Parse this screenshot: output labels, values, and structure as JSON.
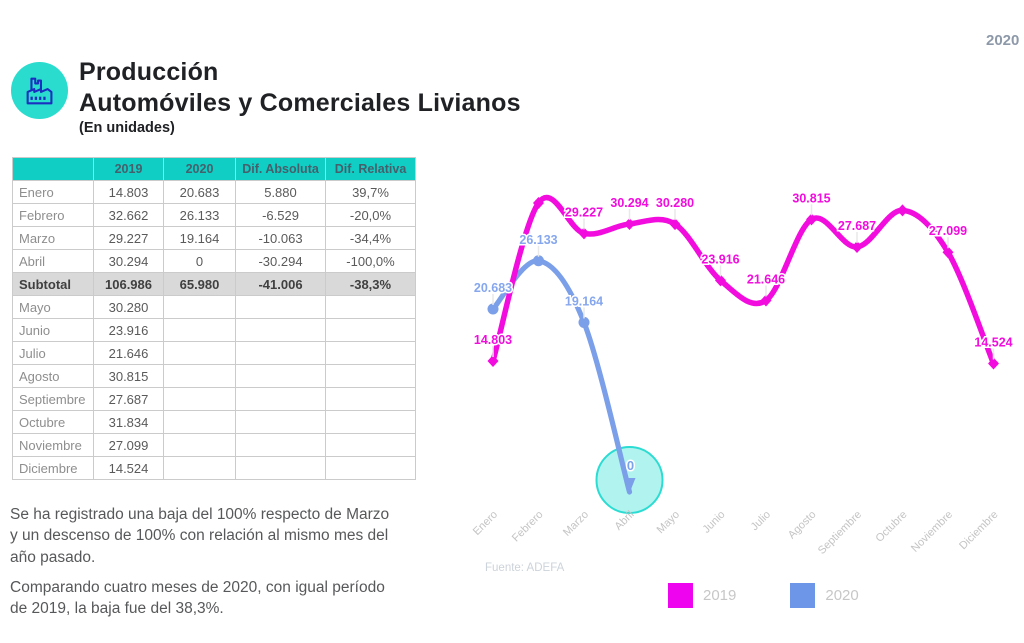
{
  "page": {
    "year_badge": "2020"
  },
  "header": {
    "title_line1": "Producción",
    "title_line2": "Automóviles y Comerciales Livianos",
    "subtitle": "(En unidades)",
    "icon": "factory-icon",
    "icon_bg_color": "#29DCCD",
    "icon_stroke_color": "#1B2EC0"
  },
  "table": {
    "columns": [
      "",
      "2019",
      "2020",
      "Dif. Absoluta",
      "Dif. Relativa"
    ],
    "rows": [
      {
        "label": "Enero",
        "values": [
          "14.803",
          "20.683",
          "5.880",
          "39,7%"
        ],
        "subtotal": false
      },
      {
        "label": "Febrero",
        "values": [
          "32.662",
          "26.133",
          "-6.529",
          "-20,0%"
        ],
        "subtotal": false
      },
      {
        "label": "Marzo",
        "values": [
          "29.227",
          "19.164",
          "-10.063",
          "-34,4%"
        ],
        "subtotal": false
      },
      {
        "label": "Abril",
        "values": [
          "30.294",
          "0",
          "-30.294",
          "-100,0%"
        ],
        "subtotal": false
      },
      {
        "label": "Subtotal",
        "values": [
          "106.986",
          "65.980",
          "-41.006",
          "-38,3%"
        ],
        "subtotal": true
      },
      {
        "label": "Mayo",
        "values": [
          "30.280",
          "",
          "",
          ""
        ],
        "subtotal": false
      },
      {
        "label": "Junio",
        "values": [
          "23.916",
          "",
          "",
          ""
        ],
        "subtotal": false
      },
      {
        "label": "Julio",
        "values": [
          "21.646",
          "",
          "",
          ""
        ],
        "subtotal": false
      },
      {
        "label": "Agosto",
        "values": [
          "30.815",
          "",
          "",
          ""
        ],
        "subtotal": false
      },
      {
        "label": "Septiembre",
        "values": [
          "27.687",
          "",
          "",
          ""
        ],
        "subtotal": false
      },
      {
        "label": "Octubre",
        "values": [
          "31.834",
          "",
          "",
          ""
        ],
        "subtotal": false
      },
      {
        "label": "Noviembre",
        "values": [
          "27.099",
          "",
          "",
          ""
        ],
        "subtotal": false
      },
      {
        "label": "Diciembre",
        "values": [
          "14.524",
          "",
          "",
          ""
        ],
        "subtotal": false
      }
    ]
  },
  "notes": {
    "p1": "Se ha registrado una baja del 100% respecto de Marzo y un descenso de 100% con relación al mismo mes del año pasado.",
    "p2": "Comparando cuatro meses de 2020, con igual período de 2019, la baja fue del 38,3%."
  },
  "chart": {
    "source": "Fuente: ADEFA",
    "legend": [
      {
        "label": "2019",
        "color": "#EF04EF"
      },
      {
        "label": "2020",
        "color": "#6D96E8"
      }
    ]
  },
  "chart_data": {
    "type": "line",
    "categories": [
      "Enero",
      "Febrero",
      "Marzo",
      "Abril",
      "Mayo",
      "Junio",
      "Julio",
      "Agosto",
      "Septiembre",
      "Octubre",
      "Noviembre",
      "Diciembre"
    ],
    "series": [
      {
        "name": "2019",
        "color": "#F20CDE",
        "marker": "diamond",
        "values": [
          14803,
          32662,
          29227,
          30294,
          30280,
          23916,
          21646,
          30815,
          27687,
          31834,
          27099,
          14524
        ],
        "labels": [
          "14.803",
          null,
          "29.227",
          "30.294",
          "30.280",
          "23.916",
          "21.646",
          "30.815",
          "27.687",
          null,
          "27.099",
          "14.524"
        ]
      },
      {
        "name": "2020",
        "color": "#7B9FE8",
        "marker": "circle",
        "values": [
          20683,
          26133,
          19164,
          0
        ],
        "labels": [
          "20.683",
          "26.133",
          "19.164",
          null
        ]
      }
    ],
    "highlight": {
      "series": "2020",
      "category": "Abril",
      "index": 3,
      "label": "0",
      "bubble_fill": "#63E8DF",
      "bubble_stroke": "#2BDCD2"
    },
    "ylim": [
      0,
      33000
    ],
    "grid": false,
    "legend_position": "bottom",
    "axis_label_color": "#C4C4C4",
    "title": "",
    "xlabel": "",
    "ylabel": ""
  }
}
